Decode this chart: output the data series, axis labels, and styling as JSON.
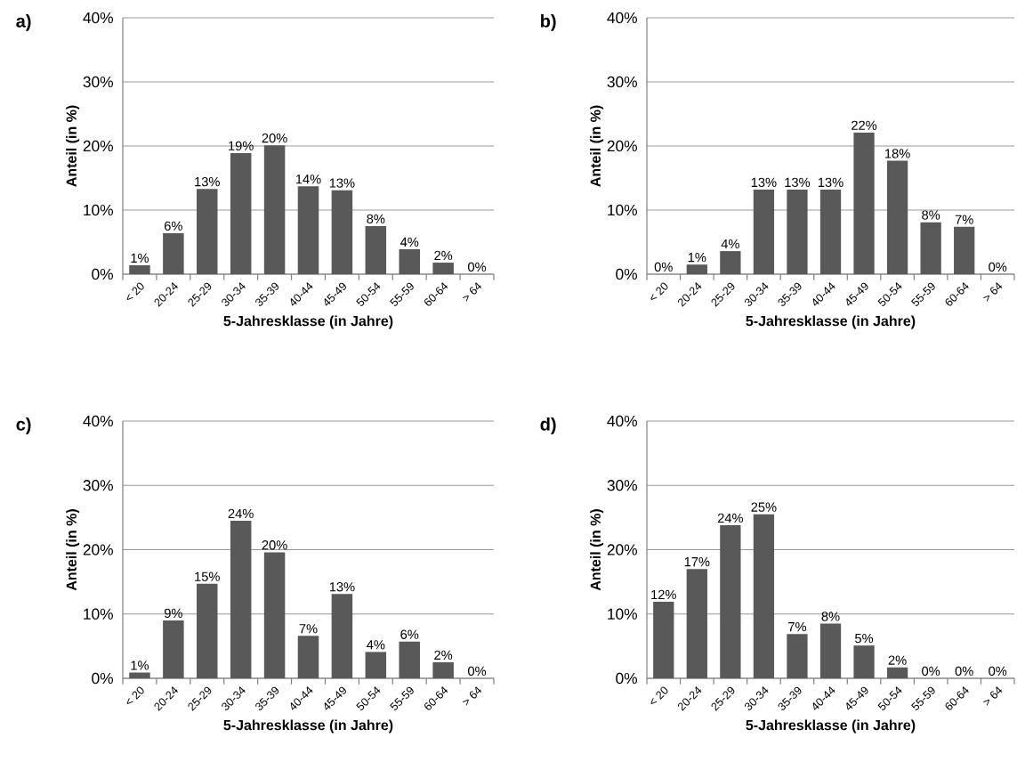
{
  "chart_data": [
    {
      "type": "bar",
      "title": "a)",
      "xlabel": "5-Jahresklasse (in Jahre)",
      "ylabel": "Anteil (in %)",
      "categories": [
        "< 20",
        "20-24",
        "25-29",
        "30-34",
        "35-39",
        "40-44",
        "45-49",
        "50-54",
        "55-59",
        "60-64",
        "> 64"
      ],
      "values": [
        1.4,
        6.4,
        13.3,
        18.9,
        20.1,
        13.7,
        13.1,
        7.5,
        3.9,
        1.8,
        0
      ],
      "value_labels": [
        "1%",
        "6%",
        "13%",
        "19%",
        "20%",
        "14%",
        "13%",
        "8%",
        "4%",
        "2%",
        "0%"
      ],
      "color": "#595959",
      "ylim": [
        0,
        40
      ],
      "yticks": [
        {
          "value": 0,
          "label": "0%"
        },
        {
          "value": 10,
          "label": "10%"
        },
        {
          "value": 20,
          "label": "20%"
        },
        {
          "value": 30,
          "label": "30%"
        },
        {
          "value": 40,
          "label": "40%"
        }
      ],
      "grid": "y"
    },
    {
      "type": "bar",
      "title": "b)",
      "xlabel": "5-Jahresklasse (in Jahre)",
      "ylabel": "Anteil (in %)",
      "categories": [
        "< 20",
        "20-24",
        "25-29",
        "30-34",
        "35-39",
        "40-44",
        "45-49",
        "50-54",
        "55-59",
        "60-64",
        "> 64"
      ],
      "values": [
        0,
        1.5,
        3.6,
        13.2,
        13.2,
        13.2,
        22.1,
        17.7,
        8.1,
        7.4,
        0
      ],
      "value_labels": [
        "0%",
        "1%",
        "4%",
        "13%",
        "13%",
        "13%",
        "22%",
        "18%",
        "8%",
        "7%",
        "0%"
      ],
      "color": "#595959",
      "ylim": [
        0,
        40
      ],
      "yticks": [
        {
          "value": 0,
          "label": "0%"
        },
        {
          "value": 10,
          "label": "10%"
        },
        {
          "value": 20,
          "label": "20%"
        },
        {
          "value": 30,
          "label": "30%"
        },
        {
          "value": 40,
          "label": "40%"
        }
      ],
      "grid": "y"
    },
    {
      "type": "bar",
      "title": "c)",
      "xlabel": "5-Jahresklasse (in Jahre)",
      "ylabel": "Anteil (in %)",
      "categories": [
        "< 20",
        "20-24",
        "25-29",
        "30-34",
        "35-39",
        "40-44",
        "45-49",
        "50-54",
        "55-59",
        "60-64",
        "> 64"
      ],
      "values": [
        0.9,
        9.0,
        14.7,
        24.5,
        19.6,
        6.6,
        13.1,
        4.1,
        5.7,
        2.5,
        0
      ],
      "value_labels": [
        "1%",
        "9%",
        "15%",
        "24%",
        "20%",
        "7%",
        "13%",
        "4%",
        "6%",
        "2%",
        "0%"
      ],
      "color": "#595959",
      "ylim": [
        0,
        40
      ],
      "yticks": [
        {
          "value": 0,
          "label": "0%"
        },
        {
          "value": 10,
          "label": "10%"
        },
        {
          "value": 20,
          "label": "20%"
        },
        {
          "value": 30,
          "label": "30%"
        },
        {
          "value": 40,
          "label": "40%"
        }
      ],
      "grid": "y"
    },
    {
      "type": "bar",
      "title": "d)",
      "xlabel": "5-Jahresklasse (in Jahre)",
      "ylabel": "Anteil (in %)",
      "categories": [
        "< 20",
        "20-24",
        "25-29",
        "30-34",
        "35-39",
        "40-44",
        "45-49",
        "50-54",
        "55-59",
        "60-64",
        "> 64"
      ],
      "values": [
        11.9,
        17.0,
        23.8,
        25.5,
        6.9,
        8.5,
        5.1,
        1.7,
        0,
        0,
        0
      ],
      "value_labels": [
        "12%",
        "17%",
        "24%",
        "25%",
        "7%",
        "8%",
        "5%",
        "2%",
        "0%",
        "0%",
        "0%"
      ],
      "color": "#595959",
      "ylim": [
        0,
        40
      ],
      "yticks": [
        {
          "value": 0,
          "label": "0%"
        },
        {
          "value": 10,
          "label": "10%"
        },
        {
          "value": 20,
          "label": "20%"
        },
        {
          "value": 30,
          "label": "30%"
        },
        {
          "value": 40,
          "label": "40%"
        }
      ],
      "grid": "y"
    }
  ]
}
